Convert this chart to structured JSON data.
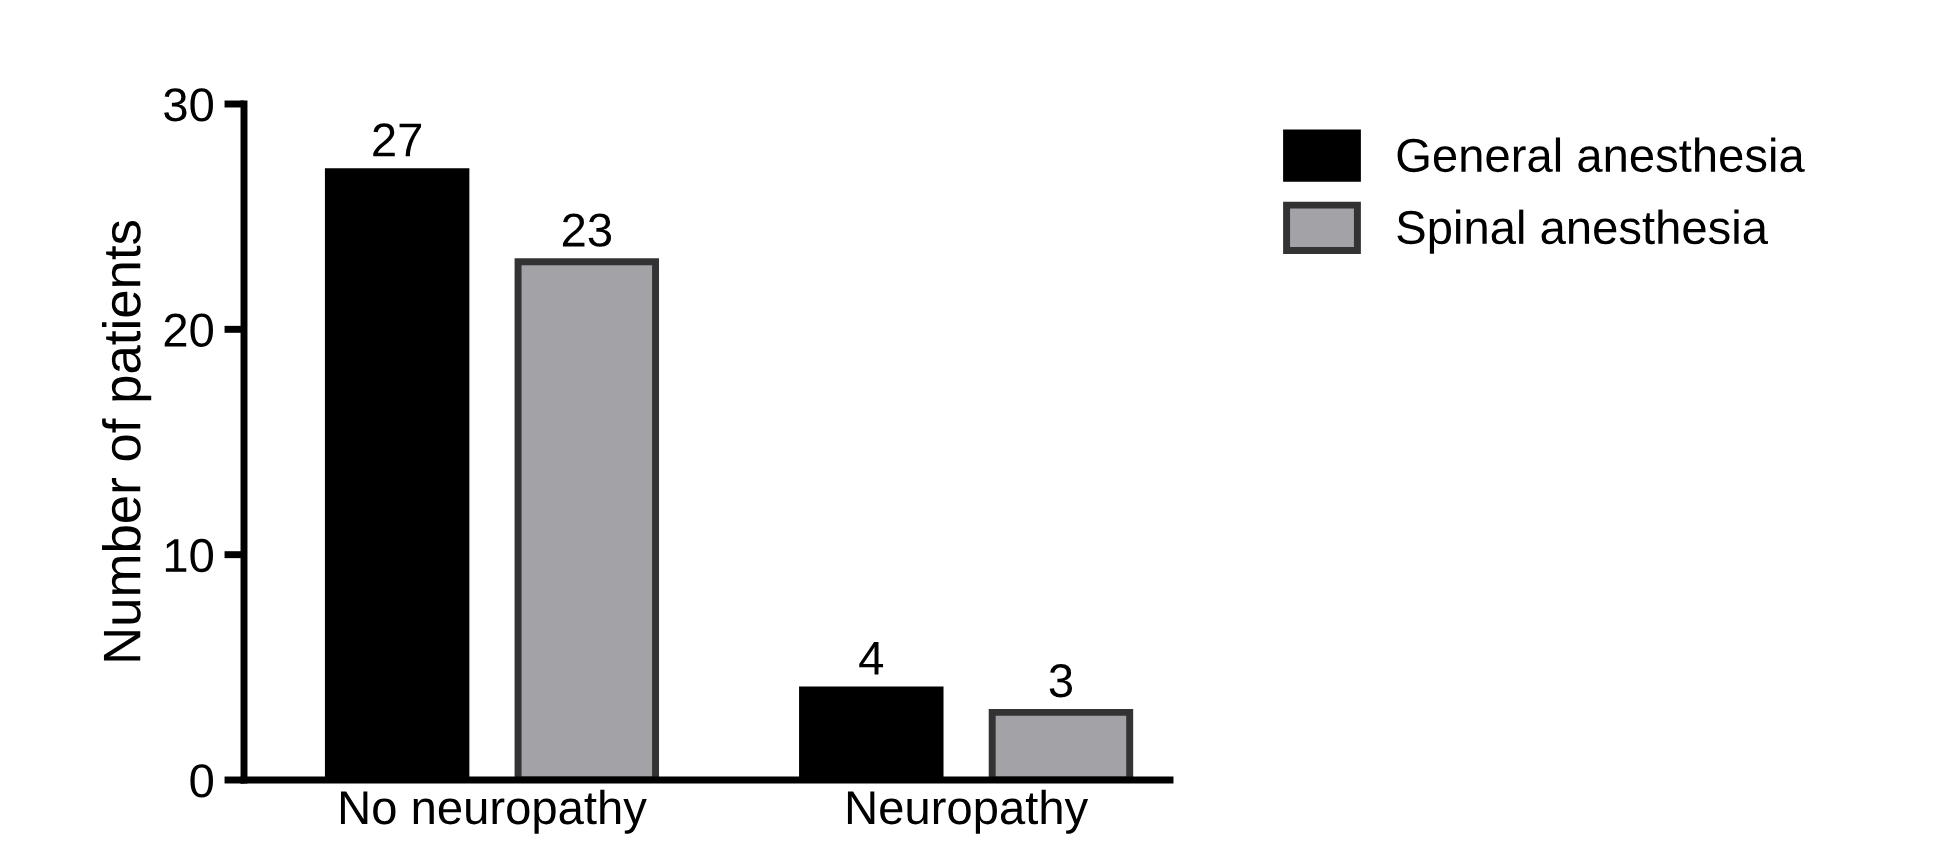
{
  "chart_data": {
    "type": "bar",
    "ylabel": "Number of patients",
    "categories": [
      "No neuropathy",
      "Neuropathy"
    ],
    "series": [
      {
        "name": "General anesthesia",
        "color": "#000000",
        "values": [
          27,
          4
        ]
      },
      {
        "name": "Spinal anesthesia",
        "color": "#a3a3a7",
        "values": [
          23,
          3
        ]
      }
    ],
    "ylim": [
      0,
      30
    ],
    "yticks": [
      0,
      10,
      20,
      30
    ],
    "data_labels": true,
    "grid": false,
    "legend": "top right"
  }
}
